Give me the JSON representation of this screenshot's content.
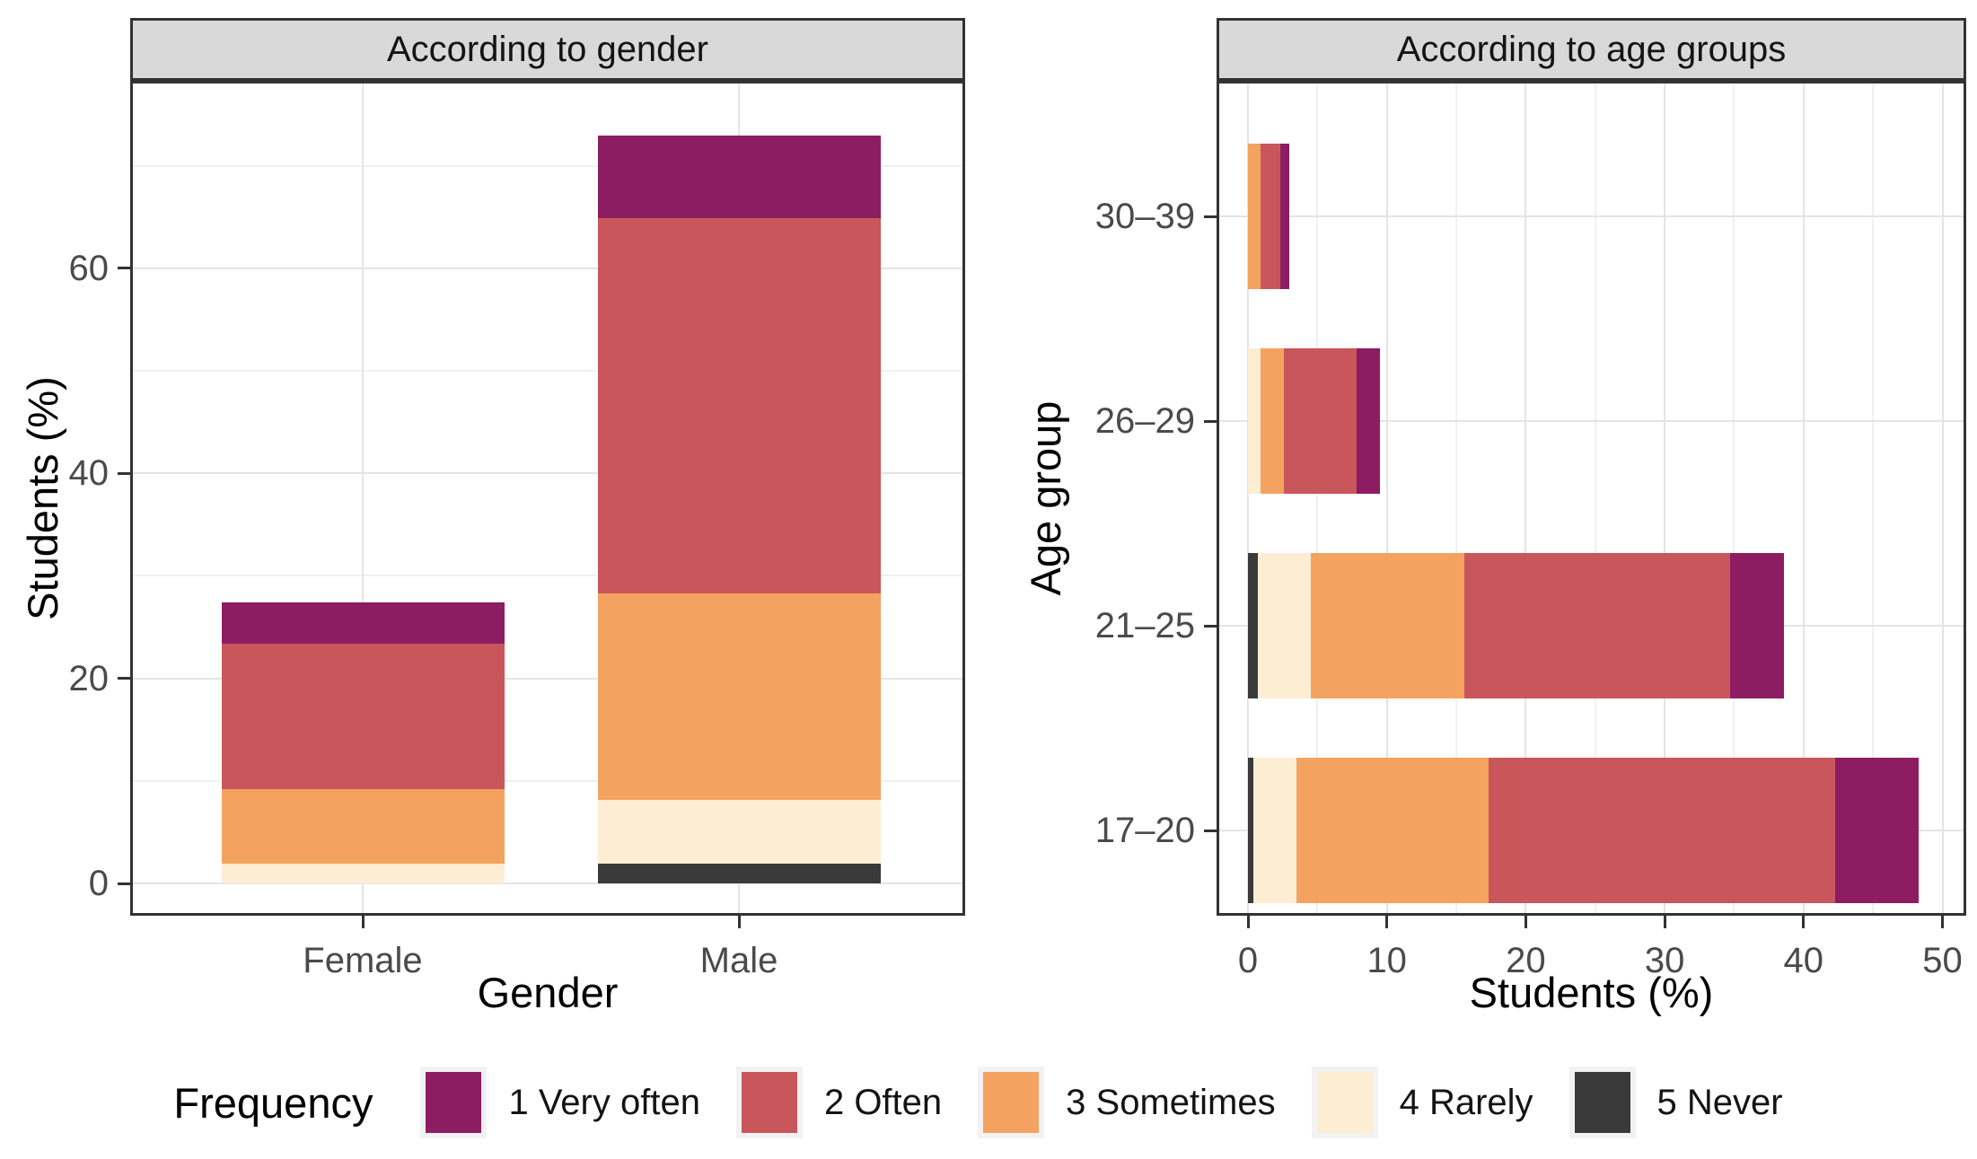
{
  "legend": {
    "title": "Frequency",
    "items": [
      {
        "label": "1 Very often",
        "color": "#8D1D63"
      },
      {
        "label": "2 Often",
        "color": "#C9565B"
      },
      {
        "label": "3 Sometimes",
        "color": "#F3A35F"
      },
      {
        "label": "4 Rarely",
        "color": "#FDEDD3"
      },
      {
        "label": "5 Never",
        "color": "#3A3A3A"
      }
    ]
  },
  "chart_data": [
    {
      "type": "bar",
      "orientation": "vertical",
      "stacked": true,
      "stacking_note": "5 Never nearest the origin, 1 Very often at the top",
      "panel_title": "According to gender",
      "xlabel": "Gender",
      "ylabel": "Students (%)",
      "categories": [
        "Female",
        "Male"
      ],
      "y_ticks": [
        0,
        20,
        40,
        60
      ],
      "ylim": [
        0,
        77
      ],
      "grid": true,
      "series": [
        {
          "name": "1 Very often",
          "color": "#8D1D63",
          "values": [
            4.0,
            8.0
          ]
        },
        {
          "name": "2 Often",
          "color": "#C9565B",
          "values": [
            14.2,
            36.6
          ]
        },
        {
          "name": "3 Sometimes",
          "color": "#F3A35F",
          "values": [
            7.3,
            20.2
          ]
        },
        {
          "name": "4 Rarely",
          "color": "#FDEDD3",
          "values": [
            1.9,
            6.2
          ]
        },
        {
          "name": "5 Never",
          "color": "#3A3A3A",
          "values": [
            0,
            1.9
          ]
        }
      ]
    },
    {
      "type": "bar",
      "orientation": "horizontal",
      "stacked": true,
      "stacking_note": "5 Never nearest the origin, 1 Very often at the right end",
      "panel_title": "According to age groups",
      "xlabel": "Students (%)",
      "ylabel": "Age group",
      "categories": [
        "17–20",
        "21–25",
        "26–29",
        "30–39"
      ],
      "x_ticks": [
        0,
        10,
        20,
        30,
        40,
        50
      ],
      "xlim": [
        0,
        50.8
      ],
      "grid": true,
      "series": [
        {
          "name": "1 Very often",
          "color": "#8D1D63",
          "values": [
            6.0,
            3.9,
            1.7,
            0.7
          ]
        },
        {
          "name": "2 Often",
          "color": "#C9565B",
          "values": [
            25.0,
            19.1,
            5.2,
            1.4
          ]
        },
        {
          "name": "3 Sometimes",
          "color": "#F3A35F",
          "values": [
            13.8,
            11.1,
            1.7,
            0.9
          ]
        },
        {
          "name": "4 Rarely",
          "color": "#FDEDD3",
          "values": [
            3.1,
            3.8,
            0.9,
            0
          ]
        },
        {
          "name": "5 Never",
          "color": "#3A3A3A",
          "values": [
            0.4,
            0.7,
            0,
            0
          ]
        }
      ]
    }
  ]
}
